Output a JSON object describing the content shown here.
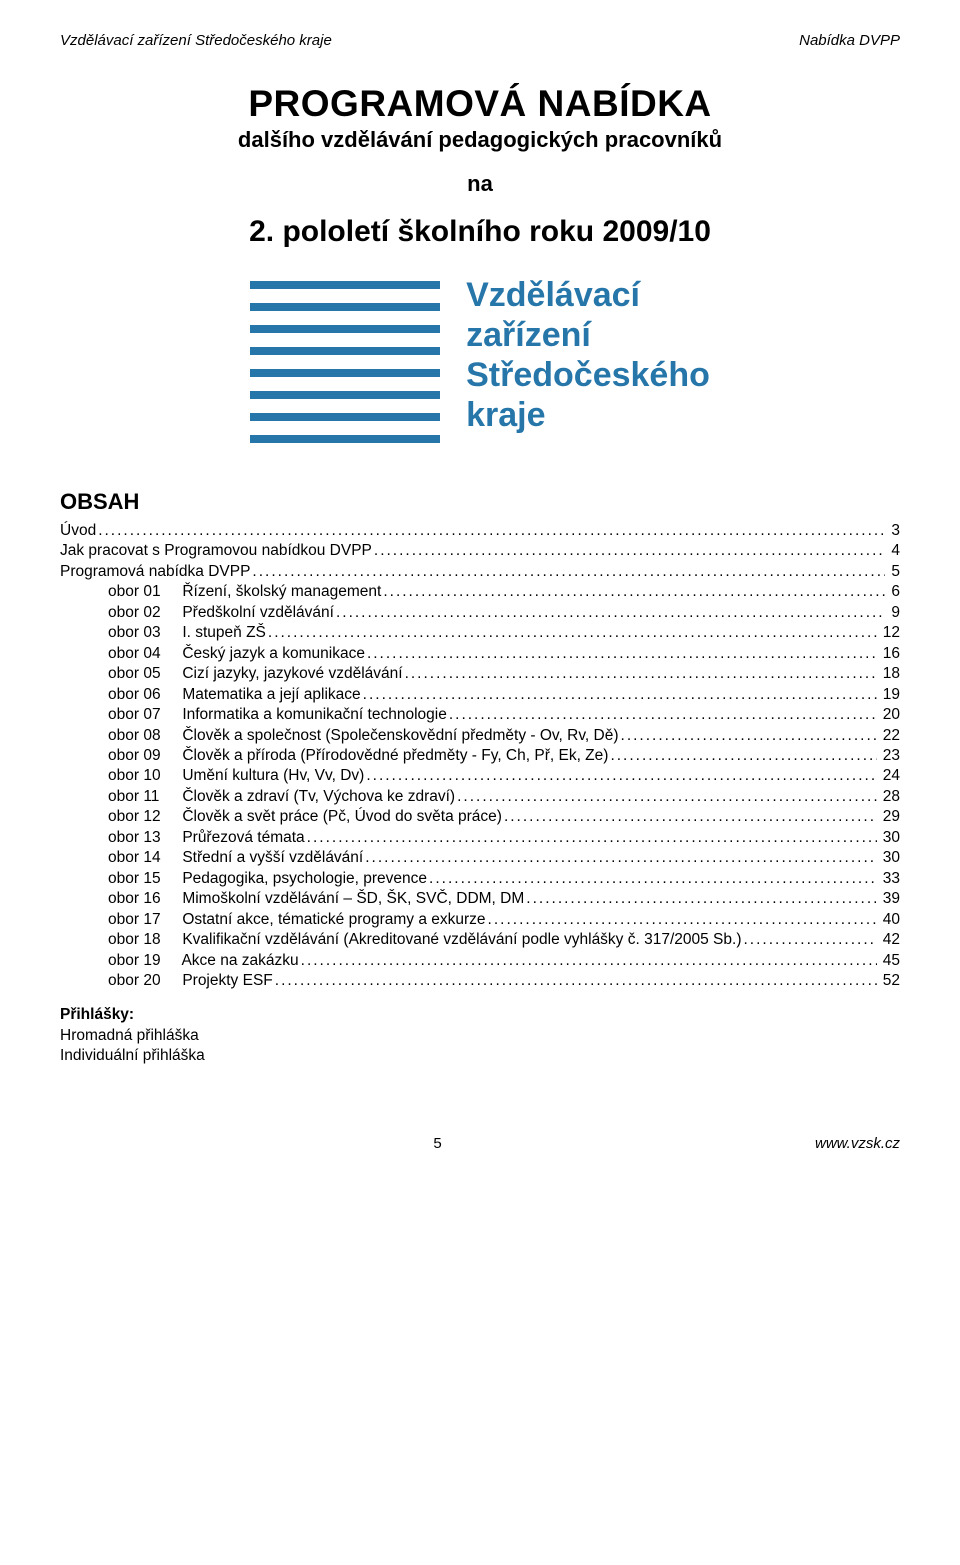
{
  "header": {
    "left": "Vzdělávací zařízení Středočeského kraje",
    "right": "Nabídka DVPP"
  },
  "title": {
    "main": "PROGRAMOVÁ NABÍDKA",
    "sub": "dalšího vzdělávání pedagogických pracovníků",
    "na": "na",
    "semester": "2. pololetí školního roku 2009/10"
  },
  "logo": {
    "bar_color": "#2676aa",
    "lines": [
      "Vzdělávací",
      "zařízení",
      "Středočeského",
      "kraje"
    ]
  },
  "obsah_heading": "OBSAH",
  "toc_front": [
    {
      "label": "Úvod",
      "page": "3"
    },
    {
      "label": "Jak pracovat s Programovou nabídkou DVPP",
      "page": "4"
    },
    {
      "label": "Programová nabídka DVPP",
      "page": "5"
    }
  ],
  "toc_obory": [
    {
      "prefix": "obor 01",
      "label": "Řízení, školský management",
      "page": "6"
    },
    {
      "prefix": "obor 02",
      "label": "Předškolní vzdělávání",
      "page": "9"
    },
    {
      "prefix": "obor 03",
      "label": "I. stupeň ZŠ",
      "page": "12"
    },
    {
      "prefix": "obor 04",
      "label": "Český jazyk a komunikace",
      "page": "16"
    },
    {
      "prefix": "obor 05",
      "label": "Cizí jazyky, jazykové vzdělávání",
      "page": "18"
    },
    {
      "prefix": "obor 06",
      "label": "Matematika a její aplikace",
      "page": "19"
    },
    {
      "prefix": "obor 07",
      "label": "Informatika a komunikační technologie",
      "page": "20"
    },
    {
      "prefix": "obor 08",
      "label": "Člověk a společnost (Společenskovědní předměty - Ov, Rv, Dě)",
      "page": "22"
    },
    {
      "prefix": "obor 09",
      "label": "Člověk a příroda (Přírodovědné předměty - Fy, Ch, Př, Ek, Ze)",
      "page": "23"
    },
    {
      "prefix": "obor 10",
      "label": "Umění kultura (Hv, Vv, Dv)",
      "page": "24"
    },
    {
      "prefix": "obor 11",
      "label": "Člověk a zdraví (Tv, Výchova ke zdraví)",
      "page": "28"
    },
    {
      "prefix": "obor 12",
      "label": "Člověk a svět práce (Pč, Úvod do světa práce)",
      "page": "29"
    },
    {
      "prefix": "obor 13",
      "label": "Průřezová témata",
      "page": "30"
    },
    {
      "prefix": "obor 14",
      "label": "Střední a vyšší vzdělávání",
      "page": "30"
    },
    {
      "prefix": "obor 15",
      "label": "Pedagogika, psychologie, prevence",
      "page": "33"
    },
    {
      "prefix": "obor 16",
      "label": "Mimoškolní vzdělávání – ŠD, ŠK, SVČ, DDM, DM",
      "page": "39"
    },
    {
      "prefix": "obor 17",
      "label": "Ostatní akce, tématické programy a exkurze",
      "page": "40"
    },
    {
      "prefix": "obor 18",
      "label": "Kvalifikační vzdělávání (Akreditované vzdělávání podle vyhlášky č. 317/2005 Sb.)",
      "page": "42"
    },
    {
      "prefix": "obor 19",
      "label": "Akce na zakázku",
      "page": "45"
    },
    {
      "prefix": "obor 20",
      "label": "Projekty ESF",
      "page": "52"
    }
  ],
  "attachments": {
    "head": "Přihlášky:",
    "items": [
      "Hromadná přihláška",
      "Individuální přihláška"
    ]
  },
  "footer": {
    "page_no": "5",
    "url": "www.vzsk.cz"
  }
}
